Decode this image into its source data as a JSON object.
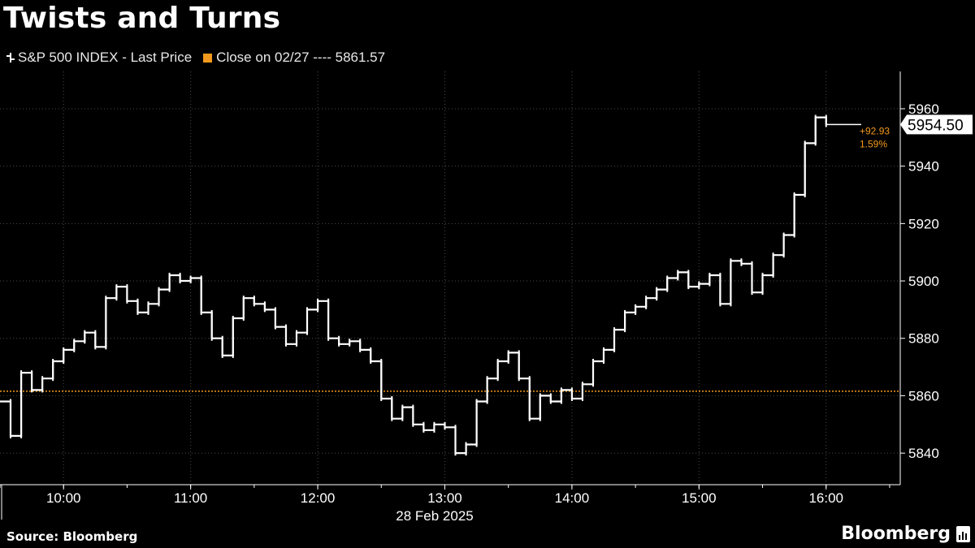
{
  "title": "Twists and Turns",
  "legend": {
    "series_label": "S&P 500 INDEX - Last Price",
    "reference_label": "Close on 02/27 ---- 5861.57"
  },
  "colors": {
    "background": "#000000",
    "series": "#ffffff",
    "reference": "#f39a1e",
    "grid": "#4a4a4a",
    "axis_text": "#ffffff"
  },
  "chart_data": {
    "type": "line",
    "style": "ohlc-bars",
    "title": "Twists and Turns",
    "xlabel": "28 Feb 2025",
    "ylabel": "",
    "x_ticks": [
      "10:00",
      "11:00",
      "12:00",
      "13:00",
      "14:00",
      "15:00",
      "16:00"
    ],
    "x_range": [
      "09:30",
      "16:35"
    ],
    "y_ticks": [
      5840,
      5860,
      5880,
      5900,
      5920,
      5940,
      5960
    ],
    "ylim": [
      5829,
      5973
    ],
    "grid": true,
    "legend_position": "top-left",
    "series": [
      {
        "name": "S&P 500 INDEX - Last Price",
        "x": [
          "09:30",
          "09:35",
          "09:40",
          "09:45",
          "09:50",
          "09:55",
          "10:00",
          "10:05",
          "10:10",
          "10:15",
          "10:20",
          "10:25",
          "10:30",
          "10:35",
          "10:40",
          "10:45",
          "10:50",
          "10:55",
          "11:00",
          "11:05",
          "11:10",
          "11:15",
          "11:20",
          "11:25",
          "11:30",
          "11:35",
          "11:40",
          "11:45",
          "11:50",
          "11:55",
          "12:00",
          "12:05",
          "12:10",
          "12:15",
          "12:20",
          "12:25",
          "12:30",
          "12:35",
          "12:40",
          "12:45",
          "12:50",
          "12:55",
          "13:00",
          "13:05",
          "13:10",
          "13:15",
          "13:20",
          "13:25",
          "13:30",
          "13:35",
          "13:40",
          "13:45",
          "13:50",
          "13:55",
          "14:00",
          "14:05",
          "14:10",
          "14:15",
          "14:20",
          "14:25",
          "14:30",
          "14:35",
          "14:40",
          "14:45",
          "14:50",
          "14:55",
          "15:00",
          "15:05",
          "15:10",
          "15:15",
          "15:20",
          "15:25",
          "15:30",
          "15:35",
          "15:40",
          "15:45",
          "15:50",
          "15:55",
          "16:00"
        ],
        "values": [
          5858,
          5846,
          5868,
          5862,
          5866,
          5872,
          5876,
          5879,
          5882,
          5877,
          5894,
          5898,
          5893,
          5889,
          5892,
          5897,
          5902,
          5900,
          5901,
          5889,
          5880,
          5874,
          5887,
          5894,
          5892,
          5890,
          5884,
          5878,
          5882,
          5890,
          5893,
          5880,
          5878,
          5879,
          5876,
          5872,
          5859,
          5852,
          5856,
          5850,
          5848,
          5850,
          5849,
          5840,
          5843,
          5858,
          5866,
          5872,
          5875,
          5866,
          5852,
          5860,
          5858,
          5862,
          5859,
          5864,
          5872,
          5876,
          5883,
          5889,
          5891,
          5894,
          5897,
          5901,
          5903,
          5898,
          5899,
          5902,
          5892,
          5907,
          5906,
          5896,
          5902,
          5909,
          5916,
          5930,
          5948,
          5957,
          5954.5
        ]
      }
    ],
    "reference_line": {
      "label": "Close on 02/27",
      "value": 5861.57
    },
    "last_value_label": "5954.50",
    "change_labels": [
      "+92.93",
      "1.59%"
    ]
  },
  "footer": {
    "source": "Source: Bloomberg",
    "brand": "Bloomberg"
  }
}
